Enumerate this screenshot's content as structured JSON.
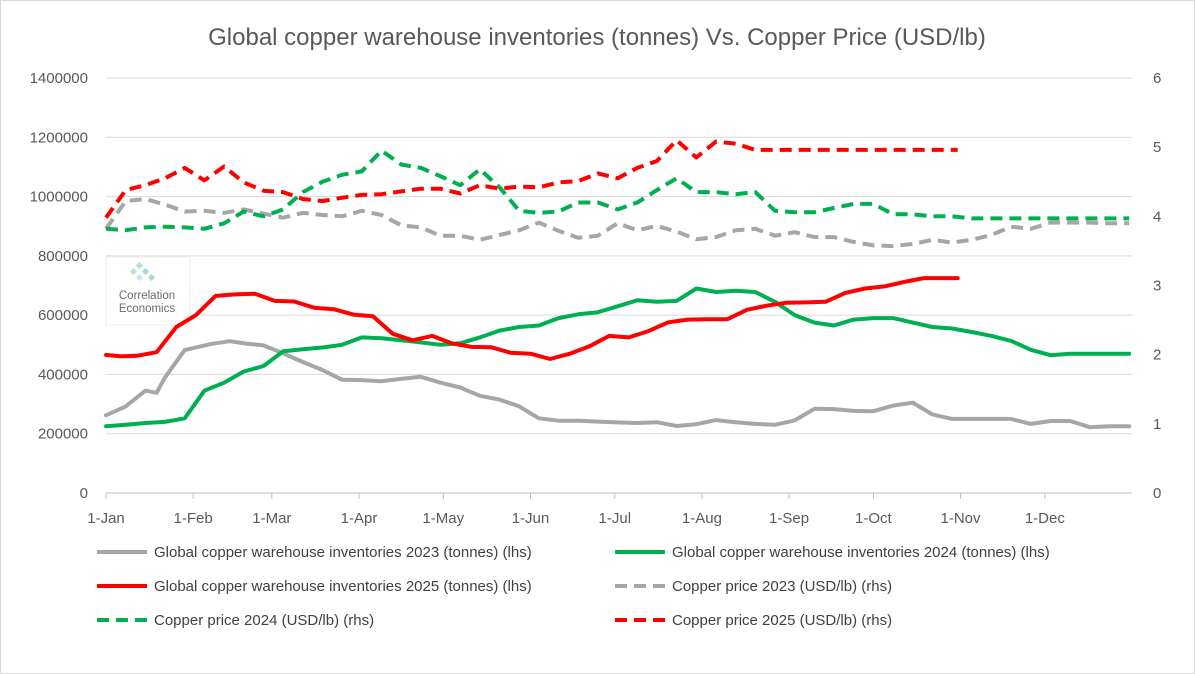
{
  "chart_data": {
    "type": "line",
    "title": "Global copper warehouse inventories (tonnes) Vs. Copper Price (USD/lb)",
    "x_tick_labels": [
      "1-Jan",
      "1-Feb",
      "1-Mar",
      "1-Apr",
      "1-May",
      "1-Jun",
      "1-Jul",
      "1-Aug",
      "1-Sep",
      "1-Oct",
      "1-Nov",
      "1-Dec"
    ],
    "x_tick_days": [
      0,
      31,
      59,
      90,
      120,
      151,
      181,
      212,
      243,
      273,
      304,
      334
    ],
    "xlim": [
      0,
      365
    ],
    "y_left": {
      "ylim": [
        0,
        1400000
      ],
      "ticks": [
        "0",
        "200000",
        "400000",
        "600000",
        "800000",
        "1000000",
        "1200000",
        "1400000"
      ]
    },
    "y_right": {
      "ylim": [
        0,
        6
      ],
      "ticks": [
        "0",
        "1",
        "2",
        "3",
        "4",
        "5",
        "6"
      ]
    },
    "watermark": {
      "line1": "Correlation",
      "line2": "Economics"
    },
    "series": [
      {
        "name": "Global copper warehouse inventories 2023 (tonnes) (lhs)",
        "axis": "left",
        "color": "#a6a6a6",
        "dash": false,
        "x": [
          0,
          7,
          14,
          18,
          21,
          28,
          37,
          44,
          50,
          56,
          62,
          70,
          77,
          84,
          91,
          98,
          105,
          112,
          119,
          126,
          133,
          140,
          147,
          154,
          161,
          168,
          175,
          182,
          189,
          196,
          203,
          210,
          217,
          224,
          231,
          238,
          245,
          252,
          259,
          266,
          273,
          280,
          287,
          294,
          301,
          308,
          315,
          322,
          329,
          336,
          343,
          350,
          357,
          364
        ],
        "y": [
          262000,
          292000,
          345000,
          338000,
          390000,
          482000,
          502000,
          512000,
          504000,
          498000,
          475000,
          442000,
          415000,
          382000,
          381000,
          377000,
          385000,
          392000,
          372000,
          356000,
          328000,
          315000,
          292000,
          252000,
          244000,
          244000,
          241000,
          238000,
          236000,
          239000,
          226000,
          232000,
          246000,
          239000,
          233000,
          230000,
          245000,
          284000,
          283000,
          277000,
          276000,
          295000,
          305000,
          265000,
          250000,
          250000,
          250000,
          250000,
          233000,
          243000,
          243000,
          222000,
          225000,
          225000
        ]
      },
      {
        "name": "Global copper warehouse inventories 2024 (tonnes) (lhs)",
        "axis": "left",
        "color": "#00b050",
        "dash": false,
        "x": [
          0,
          7,
          14,
          21,
          28,
          35,
          42,
          49,
          56,
          63,
          70,
          77,
          84,
          91,
          98,
          105,
          112,
          119,
          126,
          133,
          140,
          147,
          154,
          161,
          168,
          175,
          182,
          189,
          196,
          203,
          210,
          217,
          224,
          231,
          238,
          245,
          252,
          259,
          266,
          273,
          280,
          287,
          294,
          301,
          308,
          315,
          322,
          329,
          336,
          343,
          350,
          357,
          364
        ],
        "y": [
          225000,
          230000,
          236000,
          240000,
          252000,
          345000,
          372000,
          410000,
          428000,
          478000,
          485000,
          491000,
          500000,
          525000,
          522000,
          515000,
          508000,
          500000,
          505000,
          525000,
          548000,
          560000,
          565000,
          590000,
          603000,
          610000,
          630000,
          650000,
          645000,
          648000,
          690000,
          678000,
          682000,
          678000,
          645000,
          600000,
          575000,
          565000,
          585000,
          590000,
          590000,
          575000,
          560000,
          555000,
          543000,
          530000,
          513000,
          483000,
          465000,
          470000,
          470000,
          470000,
          470000
        ]
      },
      {
        "name": "Global copper warehouse inventories 2025 (tonnes) (lhs)",
        "axis": "left",
        "color": "#ff0000",
        "dash": false,
        "x": [
          0,
          5,
          11,
          18,
          25,
          32,
          39,
          46,
          53,
          60,
          67,
          74,
          81,
          88,
          95,
          102,
          109,
          116,
          123,
          130,
          137,
          144,
          151,
          158,
          165,
          172,
          179,
          186,
          193,
          200,
          207,
          214,
          221,
          228,
          235,
          242,
          249,
          256,
          263,
          270,
          277,
          284,
          291,
          298,
          303
        ],
        "y": [
          466000,
          461000,
          463000,
          475000,
          560000,
          600000,
          665000,
          670000,
          672000,
          648000,
          646000,
          625000,
          620000,
          602000,
          596000,
          537000,
          515000,
          530000,
          505000,
          493000,
          492000,
          473000,
          470000,
          452000,
          470000,
          495000,
          530000,
          525000,
          546000,
          576000,
          585000,
          586000,
          586000,
          618000,
          632000,
          642000,
          643000,
          645000,
          675000,
          690000,
          697000,
          712000,
          725000,
          725000,
          725000
        ]
      },
      {
        "name": "Copper price 2023 (USD/lb) (rhs)",
        "axis": "right",
        "color": "#a6a6a6",
        "dash": true,
        "x": [
          0,
          7,
          14,
          21,
          28,
          35,
          42,
          49,
          56,
          63,
          70,
          77,
          84,
          91,
          98,
          105,
          112,
          119,
          126,
          133,
          140,
          147,
          154,
          161,
          168,
          175,
          182,
          189,
          196,
          203,
          210,
          217,
          224,
          231,
          238,
          245,
          252,
          259,
          266,
          273,
          280,
          287,
          294,
          301,
          308,
          315,
          322,
          329,
          336,
          343,
          350,
          357,
          364
        ],
        "y": [
          3.82,
          4.22,
          4.25,
          4.17,
          4.07,
          4.08,
          4.05,
          4.1,
          4.04,
          3.98,
          4.05,
          4.02,
          4.0,
          4.08,
          4.02,
          3.87,
          3.84,
          3.72,
          3.72,
          3.66,
          3.73,
          3.8,
          3.91,
          3.79,
          3.69,
          3.72,
          3.9,
          3.8,
          3.86,
          3.78,
          3.67,
          3.7,
          3.8,
          3.82,
          3.72,
          3.77,
          3.7,
          3.7,
          3.63,
          3.58,
          3.57,
          3.6,
          3.66,
          3.62,
          3.66,
          3.73,
          3.85,
          3.82,
          3.91,
          3.91,
          3.91,
          3.9,
          3.9
        ]
      },
      {
        "name": "Copper price 2024 (USD/lb) (rhs)",
        "axis": "right",
        "color": "#00b050",
        "dash": true,
        "x": [
          0,
          7,
          14,
          21,
          28,
          35,
          42,
          49,
          56,
          63,
          70,
          77,
          84,
          91,
          98,
          105,
          112,
          119,
          126,
          133,
          140,
          147,
          154,
          161,
          168,
          175,
          182,
          189,
          196,
          203,
          210,
          217,
          224,
          231,
          238,
          245,
          252,
          259,
          266,
          273,
          280,
          287,
          294,
          301,
          308,
          315,
          322,
          329,
          336,
          343,
          350,
          357,
          364
        ],
        "y": [
          3.82,
          3.8,
          3.84,
          3.85,
          3.84,
          3.82,
          3.9,
          4.07,
          4.0,
          4.1,
          4.35,
          4.5,
          4.6,
          4.65,
          4.95,
          4.75,
          4.7,
          4.58,
          4.45,
          4.68,
          4.42,
          4.08,
          4.05,
          4.07,
          4.2,
          4.2,
          4.1,
          4.2,
          4.38,
          4.55,
          4.35,
          4.35,
          4.32,
          4.35,
          4.08,
          4.06,
          4.06,
          4.12,
          4.18,
          4.18,
          4.03,
          4.03,
          4.0,
          4.0,
          3.97,
          3.97,
          3.97,
          3.97,
          3.97,
          3.97,
          3.97,
          3.97,
          3.97
        ]
      },
      {
        "name": "Copper price 2025 (USD/lb) (rhs)",
        "axis": "right",
        "color": "#ff0000",
        "dash": true,
        "x": [
          0,
          7,
          14,
          21,
          28,
          35,
          42,
          49,
          56,
          63,
          70,
          77,
          84,
          91,
          98,
          105,
          112,
          119,
          126,
          133,
          140,
          147,
          154,
          161,
          168,
          175,
          182,
          189,
          196,
          203,
          210,
          217,
          224,
          231,
          238,
          245,
          252,
          259,
          266,
          273,
          280,
          287,
          294,
          301,
          303
        ],
        "y": [
          3.98,
          4.38,
          4.45,
          4.55,
          4.7,
          4.52,
          4.72,
          4.49,
          4.37,
          4.35,
          4.25,
          4.22,
          4.27,
          4.31,
          4.32,
          4.36,
          4.4,
          4.4,
          4.33,
          4.45,
          4.4,
          4.43,
          4.42,
          4.49,
          4.51,
          4.62,
          4.55,
          4.7,
          4.8,
          5.1,
          4.85,
          5.08,
          5.05,
          4.96,
          4.96,
          4.96,
          4.96,
          4.96,
          4.96,
          4.96,
          4.96,
          4.96,
          4.96,
          4.96,
          4.96
        ]
      }
    ]
  }
}
